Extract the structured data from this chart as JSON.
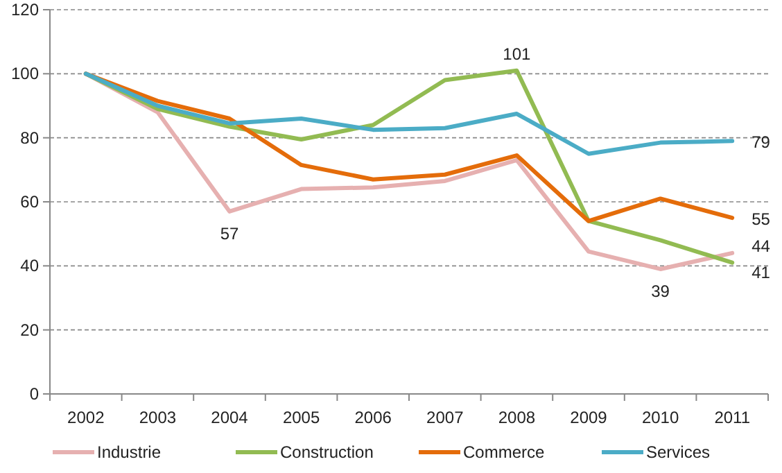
{
  "chart_data": {
    "type": "line",
    "categories": [
      "2002",
      "2003",
      "2004",
      "2005",
      "2006",
      "2007",
      "2008",
      "2009",
      "2010",
      "2011"
    ],
    "series": [
      {
        "name": "Industrie",
        "color": "#e6b0b0",
        "values": [
          100,
          88,
          57,
          64,
          64.5,
          66.5,
          73,
          44.5,
          39,
          44
        ],
        "value_labels": [
          null,
          null,
          "57",
          null,
          null,
          null,
          null,
          null,
          "39",
          "44"
        ]
      },
      {
        "name": "Construction",
        "color": "#92bb52",
        "values": [
          100,
          89,
          83.5,
          79.5,
          84,
          98,
          101,
          54,
          48,
          41
        ],
        "value_labels": [
          null,
          null,
          null,
          null,
          null,
          null,
          "101",
          null,
          null,
          "41"
        ]
      },
      {
        "name": "Commerce",
        "color": "#e46c0a",
        "values": [
          100,
          91.5,
          86,
          71.5,
          67,
          68.5,
          74.5,
          54,
          61,
          55
        ],
        "value_labels": [
          null,
          null,
          null,
          null,
          null,
          null,
          null,
          null,
          null,
          "55"
        ]
      },
      {
        "name": "Services",
        "color": "#4bacc6",
        "values": [
          100,
          90,
          84.5,
          86,
          82.5,
          83,
          87.5,
          75,
          78.5,
          79
        ],
        "value_labels": [
          null,
          null,
          null,
          null,
          null,
          null,
          null,
          null,
          null,
          "79"
        ]
      }
    ],
    "ylim": [
      0,
      120
    ],
    "yticks": [
      0,
      20,
      40,
      60,
      80,
      100,
      120
    ],
    "grid": "y",
    "legend": "bottom",
    "marker": "none",
    "line_style": "solid"
  }
}
